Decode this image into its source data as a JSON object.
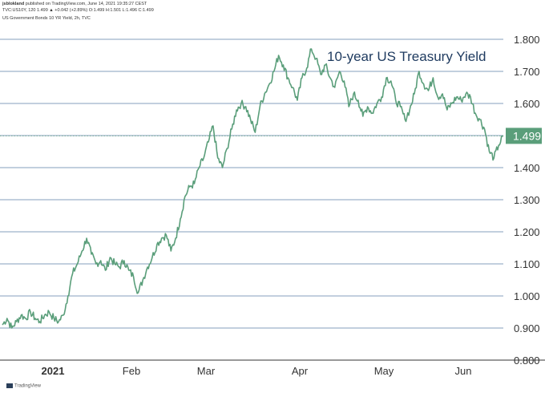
{
  "header": {
    "line1_author": "jsblokland",
    "line1_rest": " published on TradingView.com, June 14, 2021 19:35:27 CEST",
    "line2": "TVC:US10Y, 120  1.499 ▲ +0.042 (+2.89%) O:1.499 H:1.501 L:1.496 C:1.499",
    "line3": "US Government Bonds 10 YR Yield, 2h, TVC"
  },
  "footer": {
    "brand": "TradingView"
  },
  "colors": {
    "line": "#5a9e7a",
    "grid": "#5b7fa6",
    "label_bg": "#5a9e7a",
    "axis_text": "#333333"
  },
  "chart_data": {
    "type": "line",
    "title": "10-year US Treasury Yield",
    "ylim": [
      0.8,
      1.8
    ],
    "yticks": [
      "1.800",
      "1.700",
      "1.600",
      "1.500",
      "1.400",
      "1.300",
      "1.200",
      "1.100",
      "1.000",
      "0.900",
      "0.800"
    ],
    "xticks": [
      "2021",
      "Feb",
      "Mar",
      "Apr",
      "May",
      "Jun"
    ],
    "last_value_label": "1.499",
    "last_value": 1.499,
    "series": [
      {
        "values": [
          0.91,
          0.93,
          0.9,
          0.92,
          0.94,
          0.93,
          0.95,
          0.93,
          0.92,
          0.94,
          0.95,
          0.93,
          0.92,
          0.94,
          1.0,
          1.07,
          1.1,
          1.14,
          1.18,
          1.13,
          1.1,
          1.11,
          1.08,
          1.12,
          1.1,
          1.09,
          1.11,
          1.08,
          1.06,
          1.01,
          1.05,
          1.09,
          1.12,
          1.16,
          1.18,
          1.19,
          1.14,
          1.18,
          1.24,
          1.31,
          1.34,
          1.35,
          1.4,
          1.43,
          1.48,
          1.53,
          1.43,
          1.4,
          1.46,
          1.52,
          1.58,
          1.6,
          1.59,
          1.55,
          1.51,
          1.59,
          1.63,
          1.66,
          1.7,
          1.75,
          1.72,
          1.68,
          1.65,
          1.61,
          1.68,
          1.71,
          1.77,
          1.74,
          1.69,
          1.72,
          1.68,
          1.65,
          1.7,
          1.67,
          1.59,
          1.63,
          1.61,
          1.56,
          1.59,
          1.57,
          1.6,
          1.62,
          1.68,
          1.67,
          1.61,
          1.59,
          1.55,
          1.58,
          1.63,
          1.7,
          1.66,
          1.64,
          1.68,
          1.62,
          1.63,
          1.58,
          1.6,
          1.62,
          1.61,
          1.63,
          1.62,
          1.57,
          1.55,
          1.52,
          1.45,
          1.43,
          1.47,
          1.499
        ]
      }
    ]
  }
}
